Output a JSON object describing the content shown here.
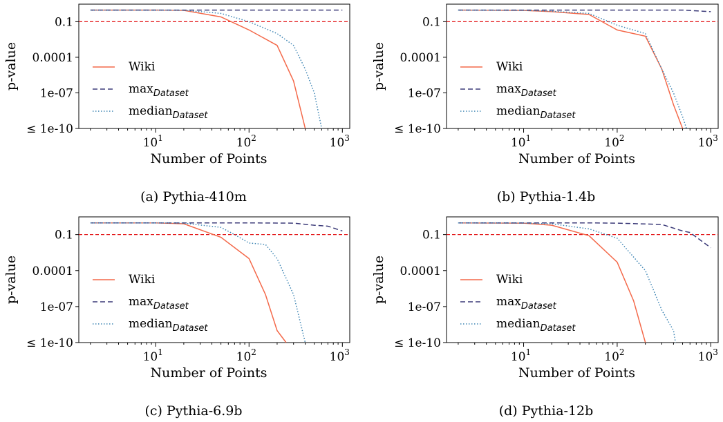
{
  "colors": {
    "wiki": "#f4694a",
    "max": "#3b3a78",
    "median": "#3f86b4",
    "threshold": "#e31a1c"
  },
  "chart_data": [
    {
      "type": "line",
      "caption": "(a) Pythia-410m",
      "xlabel": "Number of Points",
      "ylabel": "p-value",
      "xscale": "log",
      "yscale": "log",
      "xlim": [
        1.5,
        1200
      ],
      "ylim": [
        1e-10,
        3
      ],
      "xticks": [
        "10^1",
        "10^2",
        "10^3"
      ],
      "yticks": [
        "0.1",
        "0.0001",
        "1e-07",
        "≤ 1e-10"
      ],
      "threshold": 0.1,
      "legend": "center-left",
      "series": [
        {
          "name": "Wiki",
          "legend": {
            "main": "Wiki",
            "sub": ""
          },
          "style": "solid",
          "x": [
            2,
            10,
            20,
            50,
            100,
            200,
            300,
            400
          ],
          "y": [
            0.95,
            0.95,
            0.9,
            0.25,
            0.02,
            0.001,
            1e-06,
            1e-10
          ]
        },
        {
          "name": "max_Dataset",
          "legend": {
            "main": "max",
            "sub": "Dataset"
          },
          "style": "dashed",
          "x": [
            2,
            10,
            50,
            100,
            200,
            500,
            1000
          ],
          "y": [
            0.95,
            0.95,
            0.95,
            0.95,
            0.95,
            0.95,
            0.95
          ]
        },
        {
          "name": "median_Dataset",
          "legend": {
            "main": "median",
            "sub": "Dataset"
          },
          "style": "dotted",
          "x": [
            2,
            10,
            20,
            50,
            100,
            200,
            300,
            400,
            500,
            600
          ],
          "y": [
            0.95,
            0.95,
            0.92,
            0.5,
            0.1,
            0.01,
            0.001,
            1e-05,
            1e-07,
            1e-10
          ]
        }
      ]
    },
    {
      "type": "line",
      "caption": "(b) Pythia-1.4b",
      "xlabel": "Number of Points",
      "ylabel": "p-value",
      "xscale": "log",
      "yscale": "log",
      "xlim": [
        1.5,
        1200
      ],
      "ylim": [
        1e-10,
        3
      ],
      "xticks": [
        "10^1",
        "10^2",
        "10^3"
      ],
      "yticks": [
        "0.1",
        "0.0001",
        "1e-07",
        "≤ 1e-10"
      ],
      "threshold": 0.1,
      "legend": "center-left",
      "series": [
        {
          "name": "Wiki",
          "legend": {
            "main": "Wiki",
            "sub": ""
          },
          "style": "solid",
          "x": [
            2,
            10,
            20,
            50,
            100,
            200,
            300,
            400,
            500
          ],
          "y": [
            0.95,
            0.9,
            0.7,
            0.4,
            0.02,
            0.006,
            1e-05,
            1e-08,
            1e-10
          ]
        },
        {
          "name": "max_Dataset",
          "legend": {
            "main": "max",
            "sub": "Dataset"
          },
          "style": "dashed",
          "x": [
            2,
            10,
            50,
            100,
            200,
            500,
            1000
          ],
          "y": [
            0.95,
            0.95,
            0.95,
            0.95,
            0.95,
            0.95,
            0.7
          ]
        },
        {
          "name": "median_Dataset",
          "legend": {
            "main": "median",
            "sub": "Dataset"
          },
          "style": "dotted",
          "x": [
            2,
            10,
            20,
            50,
            100,
            200,
            300,
            400,
            500,
            550
          ],
          "y": [
            0.95,
            0.9,
            0.75,
            0.5,
            0.05,
            0.01,
            1e-05,
            1e-07,
            1e-09,
            1e-10
          ]
        }
      ]
    },
    {
      "type": "line",
      "caption": "(c) Pythia-6.9b",
      "xlabel": "Number of Points",
      "ylabel": "p-value",
      "xscale": "log",
      "yscale": "log",
      "xlim": [
        1.5,
        1200
      ],
      "ylim": [
        1e-10,
        3
      ],
      "xticks": [
        "10^1",
        "10^2",
        "10^3"
      ],
      "yticks": [
        "0.1",
        "0.0001",
        "1e-07",
        "≤ 1e-10"
      ],
      "threshold": 0.1,
      "legend": "center-left",
      "series": [
        {
          "name": "Wiki",
          "legend": {
            "main": "Wiki",
            "sub": ""
          },
          "style": "solid",
          "x": [
            2,
            10,
            20,
            50,
            100,
            150,
            200,
            250
          ],
          "y": [
            0.95,
            0.95,
            0.8,
            0.06,
            0.001,
            1e-06,
            1e-09,
            1e-10
          ]
        },
        {
          "name": "max_Dataset",
          "legend": {
            "main": "max",
            "sub": "Dataset"
          },
          "style": "dashed",
          "x": [
            2,
            10,
            50,
            100,
            300,
            500,
            700,
            1000
          ],
          "y": [
            0.95,
            0.95,
            0.95,
            0.95,
            0.9,
            0.6,
            0.5,
            0.2
          ]
        },
        {
          "name": "median_Dataset",
          "legend": {
            "main": "median",
            "sub": "Dataset"
          },
          "style": "dotted",
          "x": [
            2,
            10,
            20,
            50,
            70,
            100,
            150,
            200,
            300,
            400
          ],
          "y": [
            0.95,
            0.95,
            0.9,
            0.4,
            0.1,
            0.02,
            0.015,
            0.001,
            1e-06,
            1e-10
          ]
        }
      ]
    },
    {
      "type": "line",
      "caption": "(d) Pythia-12b",
      "xlabel": "Number of Points",
      "ylabel": "p-value",
      "xscale": "log",
      "yscale": "log",
      "xlim": [
        1.5,
        1200
      ],
      "ylim": [
        1e-10,
        3
      ],
      "xticks": [
        "10^1",
        "10^2",
        "10^3"
      ],
      "yticks": [
        "0.1",
        "0.0001",
        "1e-07",
        "≤ 1e-10"
      ],
      "threshold": 0.1,
      "legend": "center-left",
      "series": [
        {
          "name": "Wiki",
          "legend": {
            "main": "Wiki",
            "sub": ""
          },
          "style": "solid",
          "x": [
            2,
            10,
            20,
            50,
            100,
            150,
            200
          ],
          "y": [
            0.95,
            0.9,
            0.6,
            0.08,
            0.0005,
            3e-07,
            1e-10
          ]
        },
        {
          "name": "max_Dataset",
          "legend": {
            "main": "max",
            "sub": "Dataset"
          },
          "style": "dashed",
          "x": [
            2,
            10,
            50,
            100,
            300,
            500,
            600,
            1000
          ],
          "y": [
            0.95,
            0.95,
            0.95,
            0.9,
            0.7,
            0.2,
            0.15,
            0.008
          ]
        },
        {
          "name": "median_Dataset",
          "legend": {
            "main": "median",
            "sub": "Dataset"
          },
          "style": "dotted",
          "x": [
            2,
            10,
            20,
            50,
            100,
            200,
            300,
            400,
            420
          ],
          "y": [
            0.95,
            0.9,
            0.8,
            0.3,
            0.05,
            0.0001,
            5e-08,
            1e-09,
            1e-10
          ]
        }
      ]
    }
  ]
}
